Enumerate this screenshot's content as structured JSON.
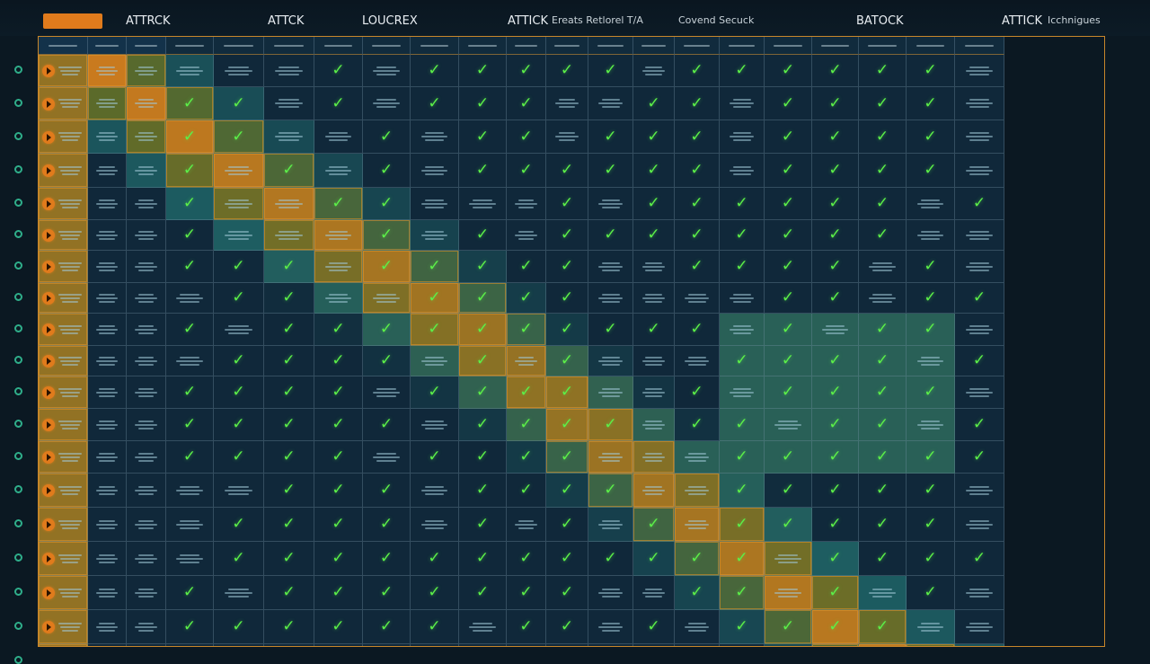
{
  "header": {
    "brand_label": "",
    "titles": [
      {
        "text": "ATTRCK"
      },
      {
        "text": "ATTCK"
      },
      {
        "text": "LOUCREX"
      },
      {
        "text": "ATTICK"
      },
      {
        "text": "Ereats Retlorel T/A"
      },
      {
        "text": "Covend Secuck"
      },
      {
        "text": "BATOCK"
      },
      {
        "text": "ATTICK"
      },
      {
        "text": "Icchnigues"
      }
    ]
  },
  "matrix": {
    "rows": 19,
    "cols": 21,
    "check_symbol": "✓",
    "colors": {
      "navy": "#10283a",
      "teal": "#1d5d62",
      "olive": "#5a6a2a",
      "orange": "#c97a1e",
      "check": "#5cf048",
      "border": "#c8862a"
    },
    "icons": {
      "row_marker": "play-circle-icon",
      "rail_marker": "circle-icon",
      "cell_mark": "checkmark-icon"
    }
  }
}
